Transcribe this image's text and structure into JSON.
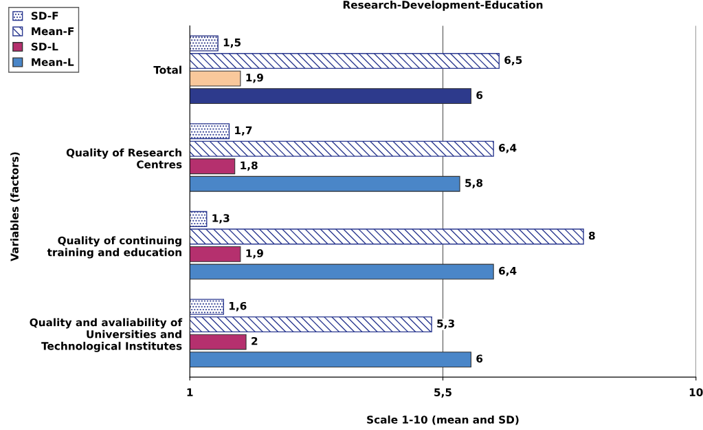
{
  "chart_data": {
    "type": "bar",
    "orientation": "horizontal",
    "title": "Research-Development-Education",
    "xlabel": "Scale 1-10 (mean and SD)",
    "ylabel": "Variables (factors)",
    "categories": [
      "Total",
      "Quality of Research\nCentres",
      "Quality of continuing\ntraining and education",
      "Quality and avaliability of\nUniversities and\nTechnological Institutes"
    ],
    "series": [
      {
        "name": "SD-F",
        "color": "#2b3990",
        "colors": [
          "#1f2a80",
          "#2b3990",
          "#2b3990",
          "#2b3990"
        ],
        "values": [
          1.5,
          1.7,
          1.3,
          1.6
        ],
        "value_labels": [
          "1,5",
          "1,7",
          "1,3",
          "1,6"
        ]
      },
      {
        "name": "Mean-F",
        "color": "#2b3990",
        "colors": [
          "#2b3990",
          "#2b3990",
          "#2b3990",
          "#2b3990"
        ],
        "values": [
          6.5,
          6.4,
          8,
          5.3
        ],
        "value_labels": [
          "6,5",
          "6,4",
          "8",
          "5,3"
        ]
      },
      {
        "name": "SD-L",
        "color": "#b5306e",
        "colors": [
          "#f9c89b",
          "#b5306e",
          "#b5306e",
          "#b5306e"
        ],
        "values": [
          1.9,
          1.8,
          1.9,
          2
        ],
        "value_labels": [
          "1,9",
          "1,8",
          "1,9",
          "2"
        ]
      },
      {
        "name": "Mean-L",
        "color": "#4a86c8",
        "colors": [
          "#2d3a8c",
          "#4a86c8",
          "#4a86c8",
          "#4a86c8"
        ],
        "values": [
          6,
          5.8,
          6.4,
          6
        ],
        "value_labels": [
          "6",
          "5,8",
          "6,4",
          "6"
        ]
      }
    ],
    "xlim": [
      1,
      10
    ],
    "xticks": [
      1,
      {
        "value": 5.5,
        "label": "5,5"
      },
      10
    ],
    "grid": "x",
    "legend": "top left"
  }
}
